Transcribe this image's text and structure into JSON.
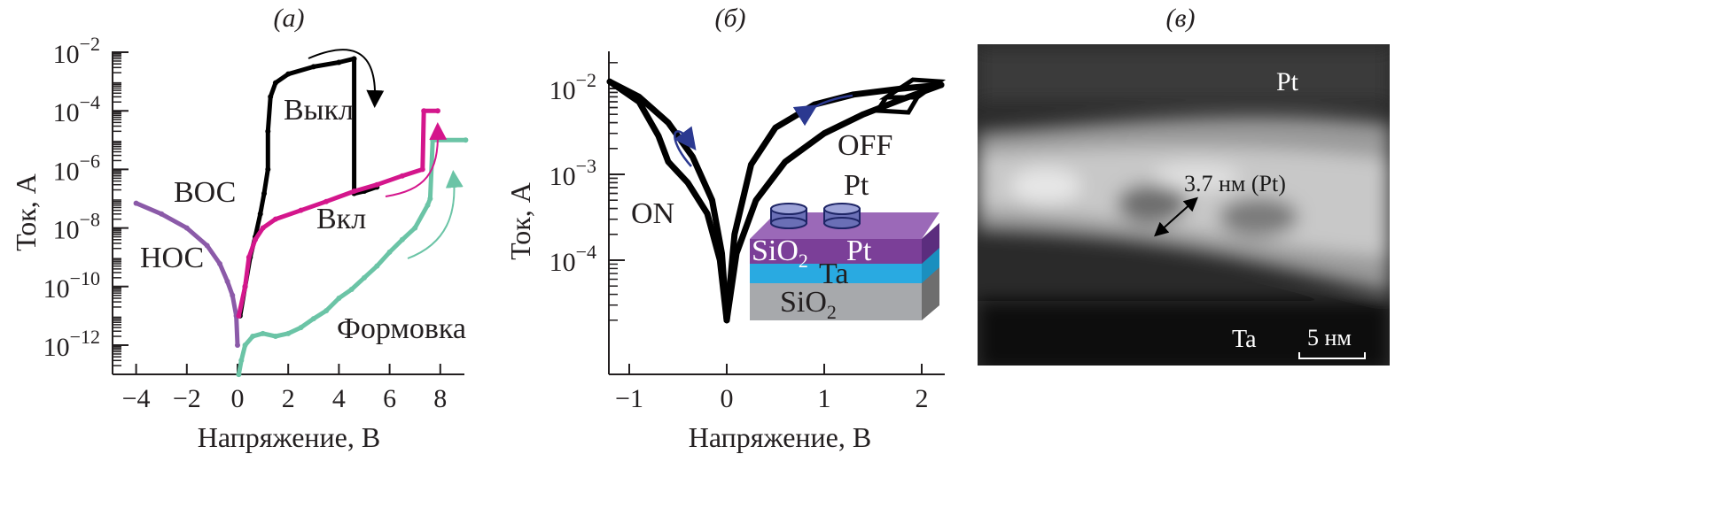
{
  "panels": {
    "a": "(а)",
    "b": "(б)",
    "c": "(в)"
  },
  "chart_data": [
    {
      "type": "line",
      "title": "(а)",
      "xlabel": "Напряжение, В",
      "ylabel": "Ток, А",
      "yscale": "log",
      "xlim": [
        -5,
        9
      ],
      "ylim": [
        1e-13,
        0.01
      ],
      "xticks": [
        "−4",
        "−2",
        "0",
        "2",
        "4",
        "6",
        "8"
      ],
      "xtick_values": [
        -4,
        -2,
        0,
        2,
        4,
        6,
        8
      ],
      "yticks": [
        {
          "base": "10",
          "exp": "−2"
        },
        {
          "base": "10",
          "exp": "−4"
        },
        {
          "base": "10",
          "exp": "−6"
        },
        {
          "base": "10",
          "exp": "−8"
        },
        {
          "base": "10",
          "exp": "−10"
        },
        {
          "base": "10",
          "exp": "−12"
        }
      ],
      "ytick_values": [
        0.01,
        0.0001,
        1e-06,
        1e-08,
        1e-10,
        1e-12
      ],
      "annotations": {
        "hrs": "ВОС",
        "lrs": "НОС",
        "off": "Выкл",
        "on": "Вкл",
        "forming": "Формовка"
      },
      "series": [
        {
          "color": "#8b5aa8",
          "x": [
            -4,
            -3,
            -2,
            -1.2,
            -0.7,
            -0.4,
            -0.2,
            -0.05,
            0
          ],
          "y": [
            7e-08,
            3e-08,
            1e-08,
            2.5e-09,
            6e-10,
            1.5e-10,
            5e-11,
            1e-11,
            1e-12
          ]
        },
        {
          "color": "#000000",
          "x": [
            0.1,
            0.3,
            0.5,
            0.7,
            0.9,
            1.05,
            1.2,
            1.2,
            1.3,
            1.5,
            2,
            3,
            4,
            4.6,
            4.6,
            5,
            5.5
          ],
          "y": [
            1e-11,
            1e-10,
            1e-09,
            5e-09,
            3e-08,
            1.5e-07,
            1e-06,
            2e-05,
            0.0003,
            0.0009,
            0.0018,
            0.0032,
            0.0045,
            0.006,
            1.5e-07,
            1.8e-07,
            2.5e-07
          ]
        },
        {
          "color": "#d4168c",
          "x": [
            0.05,
            0.3,
            0.45,
            0.7,
            1,
            1.5,
            2.5,
            3.5,
            4.6,
            5.5,
            6.5,
            7.3,
            7.35,
            7.9
          ],
          "y": [
            1e-11,
            1e-10,
            1e-09,
            4e-09,
            1e-08,
            2e-08,
            4e-08,
            8e-08,
            1.8e-07,
            3e-07,
            6e-07,
            1e-06,
            0.0001,
            0.0001
          ]
        },
        {
          "color": "#6bc4a6",
          "x": [
            0.05,
            0.15,
            0.3,
            0.6,
            1,
            1.5,
            2,
            2.5,
            3,
            3.5,
            4,
            4.5,
            5,
            5.5,
            6,
            6.5,
            7,
            7.5,
            7.6,
            7.7,
            9
          ],
          "y": [
            1e-13,
            3e-13,
            1e-12,
            2e-12,
            2.5e-12,
            2e-12,
            2.5e-12,
            4e-12,
            8e-12,
            1.5e-11,
            4e-11,
            8e-11,
            2e-10,
            5e-10,
            1.5e-09,
            4e-09,
            1e-08,
            6e-08,
            1e-07,
            1e-05,
            1e-05
          ]
        }
      ]
    },
    {
      "type": "line",
      "title": "(б)",
      "xlabel": "Напряжение, В",
      "ylabel": "Ток, А",
      "yscale": "log",
      "xlim": [
        -1.2,
        2.2
      ],
      "ylim": [
        1.5e-05,
        0.025
      ],
      "xticks": [
        "−1",
        "0",
        "1",
        "2"
      ],
      "xtick_values": [
        -1,
        0,
        1,
        2
      ],
      "yticks": [
        {
          "base": "10",
          "exp": "−2"
        },
        {
          "base": "10",
          "exp": "−3"
        },
        {
          "base": "10",
          "exp": "−4"
        }
      ],
      "ytick_values": [
        0.01,
        0.001,
        0.0001
      ],
      "annotations": {
        "on": "ON",
        "off": "OFF"
      },
      "series": [
        {
          "color": "#000000",
          "x": [
            -1.2,
            -0.9,
            -0.6,
            -0.35,
            -0.15,
            -0.05,
            0
          ],
          "y": [
            0.012,
            0.008,
            0.004,
            0.0016,
            0.0005,
            0.00012,
            2e-05
          ]
        },
        {
          "color": "#000000",
          "x": [
            -1.2,
            -0.9,
            -0.7,
            -0.6,
            -0.4,
            -0.2,
            -0.07,
            0
          ],
          "y": [
            0.012,
            0.007,
            0.0028,
            0.0014,
            0.0008,
            0.00035,
            0.0001,
            2e-05
          ]
        },
        {
          "color": "#000000",
          "x": [
            0,
            0.08,
            0.25,
            0.5,
            0.9,
            1.3,
            1.8,
            2.2
          ],
          "y": [
            2e-05,
            0.0002,
            0.0013,
            0.0035,
            0.0065,
            0.0085,
            0.01,
            0.011
          ]
        },
        {
          "color": "#000000",
          "x": [
            0,
            0.1,
            0.3,
            0.6,
            1.0,
            1.4,
            1.8,
            2.2
          ],
          "y": [
            2e-05,
            0.00012,
            0.0005,
            0.0014,
            0.003,
            0.005,
            0.0075,
            0.011
          ]
        }
      ],
      "inset": {
        "top_electrode": "Pt",
        "layer1": "SiO",
        "layer1_sub": "2",
        "layer1b": "Pt",
        "layer2": "Ta",
        "substrate": "SiO",
        "substrate_sub": "2"
      }
    }
  ],
  "micrograph": {
    "top": "Pt",
    "bottom": "Ta",
    "thickness": "3.7 нм (Pt)",
    "scale": "5 нм"
  }
}
